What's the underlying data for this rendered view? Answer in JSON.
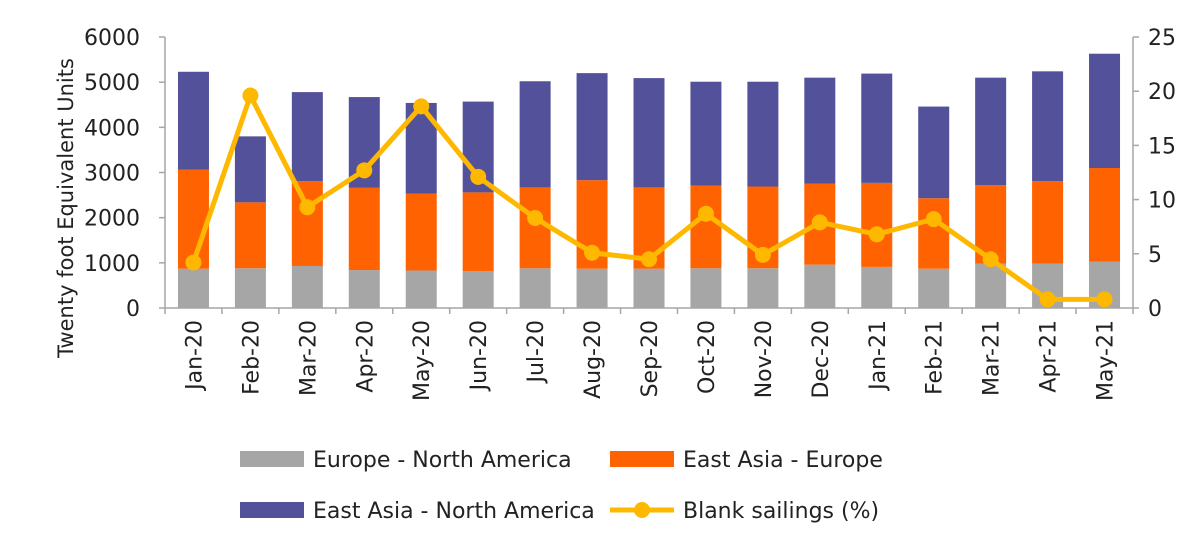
{
  "chart_data": {
    "type": "bar",
    "stacked": true,
    "categories": [
      "Jan-20",
      "Feb-20",
      "Mar-20",
      "Apr-20",
      "May-20",
      "Jun-20",
      "Jul-20",
      "Aug-20",
      "Sep-20",
      "Oct-20",
      "Nov-20",
      "Dec-20",
      "Jan-21",
      "Feb-21",
      "Mar-21",
      "Apr-21",
      "May-21"
    ],
    "ylabel": "Twenty foot Equivalent Units",
    "ylim": [
      0,
      6000
    ],
    "yticks": [
      "0",
      "1000",
      "2000",
      "3000",
      "4000",
      "5000",
      "6000"
    ],
    "y2lim": [
      0,
      25
    ],
    "y2ticks": [
      "0",
      "5",
      "10",
      "15",
      "20",
      "25"
    ],
    "grid": false,
    "legend_position": "bottom",
    "series": [
      {
        "name": "Europe - North America",
        "type": "bar",
        "color": "#a6a6a6",
        "values": [
          870,
          880,
          930,
          840,
          830,
          820,
          880,
          870,
          870,
          880,
          880,
          960,
          910,
          870,
          980,
          980,
          1030
        ]
      },
      {
        "name": "East Asia - Europe",
        "type": "bar",
        "color": "#ff6200",
        "values": [
          2190,
          1460,
          1880,
          1820,
          1700,
          1740,
          1790,
          1960,
          1800,
          1830,
          1810,
          1790,
          1860,
          1560,
          1740,
          1830,
          2070
        ]
      },
      {
        "name": "East Asia - North America",
        "type": "bar",
        "color": "#525199",
        "values": [
          2170,
          1460,
          1970,
          2010,
          2010,
          2010,
          2350,
          2370,
          2420,
          2300,
          2320,
          2350,
          2420,
          2030,
          2380,
          2430,
          2530
        ]
      },
      {
        "name": "Blank sailings (%)",
        "type": "line",
        "axis": "right",
        "color": "#ffb800",
        "values": [
          4.2,
          19.6,
          9.3,
          12.7,
          18.6,
          12.1,
          8.3,
          5.1,
          4.5,
          8.7,
          4.9,
          7.9,
          6.8,
          8.2,
          4.5,
          0.8,
          0.8
        ]
      }
    ]
  }
}
